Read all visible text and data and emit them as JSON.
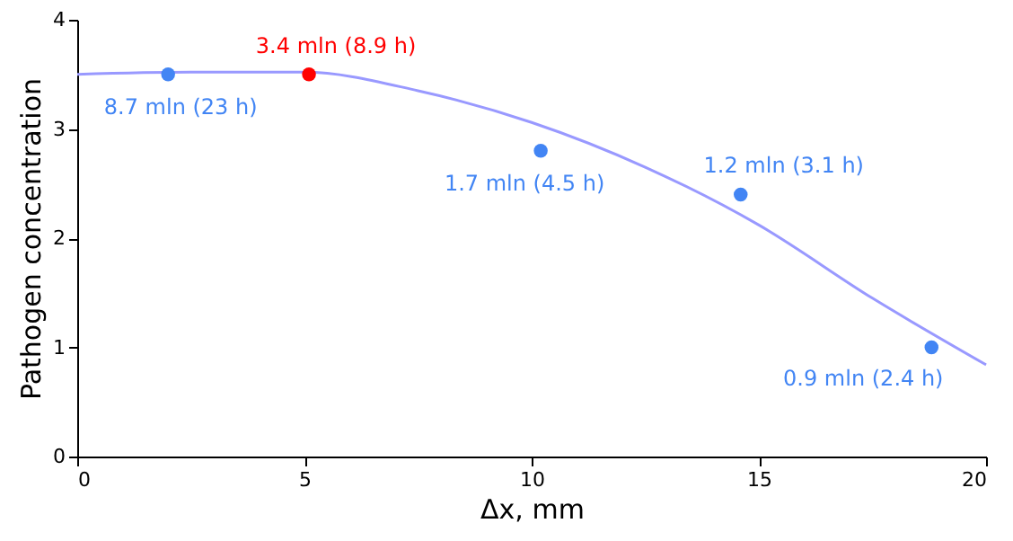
{
  "chart_data": {
    "type": "scatter",
    "xlabel": "Δx, mm",
    "ylabel": "Pathogen concentration",
    "xlim": [
      0,
      20
    ],
    "ylim": [
      0,
      4
    ],
    "xticks": [
      0,
      5,
      10,
      15,
      20
    ],
    "yticks": [
      0,
      1,
      2,
      3,
      4
    ],
    "grid": false,
    "marker": "circle",
    "series": [
      {
        "type": "line",
        "color": "#9999ff",
        "marker": "none",
        "line_style": "solid",
        "x": [
          0,
          2.5,
          5,
          7.5,
          10,
          12.5,
          15,
          17.5,
          20
        ],
        "values": [
          3.5,
          3.52,
          3.52,
          3.35,
          3.06,
          2.65,
          2.12,
          1.45,
          0.84
        ]
      },
      {
        "color": "#4285f4",
        "x": [
          2,
          10.2,
          14.6,
          18.8
        ],
        "values": [
          3.5,
          2.8,
          2.4,
          1.0
        ],
        "value_labels": [
          "8.7 mln (23 h)",
          "1.7 mln (4.5 h)",
          "1.2 mln (3.1 h)",
          "0.9 mln (2.4 h)"
        ]
      },
      {
        "color": "#ff0000",
        "x": [
          5.1
        ],
        "values": [
          3.5
        ],
        "value_labels": [
          "3.4 mln (8.9 h)"
        ]
      }
    ]
  }
}
